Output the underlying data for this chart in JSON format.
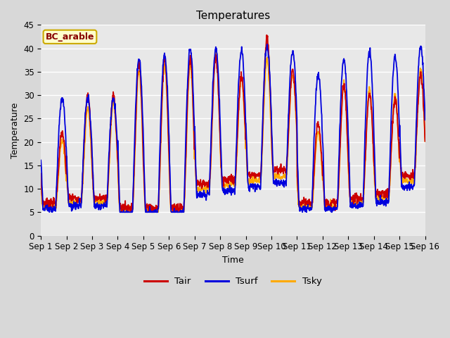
{
  "title": "Temperatures",
  "xlabel": "Time",
  "ylabel": "Temperature",
  "legend_label": "BC_arable",
  "series_labels": [
    "Tair",
    "Tsurf",
    "Tsky"
  ],
  "series_colors": [
    "#cc0000",
    "#0000dd",
    "#ffaa00"
  ],
  "ylim": [
    0,
    45
  ],
  "yticks": [
    0,
    5,
    10,
    15,
    20,
    25,
    30,
    35,
    40,
    45
  ],
  "xtick_labels": [
    "Sep 1",
    "Sep 2",
    "Sep 3",
    "Sep 4",
    "Sep 5",
    "Sep 6",
    "Sep 7",
    "Sep 8",
    "Sep 9",
    "Sep 10",
    "Sep 11",
    "Sep 12",
    "Sep 13",
    "Sep 14",
    "Sep 15",
    "Sep 16"
  ],
  "n_days": 15,
  "pts_per_day": 96,
  "line_width": 1.3,
  "fig_bg": "#d8d8d8",
  "plot_bg": "#e8e8e8",
  "legend_box_fc": "#ffffcc",
  "legend_box_ec": "#ccaa00",
  "grid_color": "#ffffff",
  "day_params": [
    {
      "base": 7,
      "amp_air": 15,
      "amp_surf": 24,
      "amp_sky": 14
    },
    {
      "base": 8,
      "amp_air": 22,
      "amp_surf": 23,
      "amp_sky": 20
    },
    {
      "base": 8,
      "amp_air": 22,
      "amp_surf": 23,
      "amp_sky": 21
    },
    {
      "base": 6,
      "amp_air": 31,
      "amp_surf": 33,
      "amp_sky": 30
    },
    {
      "base": 6,
      "amp_air": 32,
      "amp_surf": 34,
      "amp_sky": 31
    },
    {
      "base": 6,
      "amp_air": 32,
      "amp_surf": 35,
      "amp_sky": 31
    },
    {
      "base": 11,
      "amp_air": 27,
      "amp_surf": 31,
      "amp_sky": 29
    },
    {
      "base": 12,
      "amp_air": 22,
      "amp_surf": 30,
      "amp_sky": 23
    },
    {
      "base": 13,
      "amp_air": 29,
      "amp_surf": 30,
      "amp_sky": 26
    },
    {
      "base": 14,
      "amp_air": 21,
      "amp_surf": 28,
      "amp_sky": 22
    },
    {
      "base": 7,
      "amp_air": 17,
      "amp_surf": 29,
      "amp_sky": 16
    },
    {
      "base": 7,
      "amp_air": 25,
      "amp_surf": 32,
      "amp_sky": 26
    },
    {
      "base": 8,
      "amp_air": 22,
      "amp_surf": 33,
      "amp_sky": 24
    },
    {
      "base": 9,
      "amp_air": 20,
      "amp_surf": 31,
      "amp_sky": 22
    },
    {
      "base": 13,
      "amp_air": 21,
      "amp_surf": 30,
      "amp_sky": 24
    }
  ]
}
